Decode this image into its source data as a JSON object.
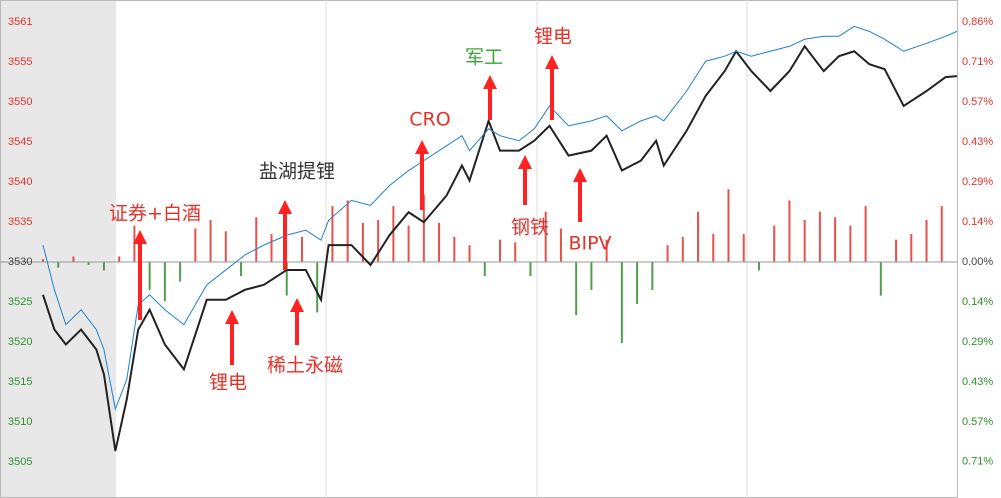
{
  "chart_data": {
    "type": "line",
    "xlim": [
      0,
      240
    ],
    "ylim": [
      3499.97,
      3563.34
    ],
    "yticks": [
      {
        "value": 3560.54,
        "label": "3561"
      },
      {
        "value": 3555.45,
        "label": "3555"
      },
      {
        "value": 3550.36,
        "label": "3550"
      },
      {
        "value": 3545.27,
        "label": "3545"
      },
      {
        "value": 3540.18,
        "label": "3540"
      },
      {
        "value": 3535.09,
        "label": "3535"
      },
      3530,
      {
        "value": 3524.91,
        "label": "3525"
      },
      {
        "value": 3519.82,
        "label": "3520"
      },
      {
        "value": 3514.73,
        "label": "3515"
      },
      {
        "value": 3509.64,
        "label": "3510"
      },
      {
        "value": 3504.55,
        "label": "3505"
      }
    ],
    "y2lim": [
      -0.8437,
      0.9367
    ],
    "y2ticks": [
      {
        "value": 0.857,
        "label": "0.86%"
      },
      {
        "value": 0.714,
        "label": "0.71%"
      },
      {
        "value": 0.572,
        "label": "0.57%"
      },
      {
        "value": 0.429,
        "label": "0.43%"
      },
      {
        "value": 0.286,
        "label": "0.29%"
      },
      {
        "value": 0.143,
        "label": "0.14%"
      },
      {
        "value": 0,
        "label": "0.00%"
      },
      {
        "value": -0.143,
        "label": "0.14%"
      },
      {
        "value": -0.286,
        "label": "0.29%"
      },
      {
        "value": -0.429,
        "label": "0.43%"
      },
      {
        "value": -0.572,
        "label": "0.57%"
      },
      {
        "value": -0.714,
        "label": "0.71%"
      }
    ],
    "up_color": "#e4322b",
    "down_color": "#2f8f2f",
    "x": [
      0,
      3,
      6,
      10,
      14,
      16,
      19,
      22,
      25,
      28,
      32,
      37,
      43,
      48,
      53,
      58,
      64,
      69,
      73,
      75,
      81,
      86,
      91,
      96,
      100,
      106,
      110,
      112,
      117,
      120,
      125,
      129,
      133,
      138,
      144,
      148,
      152,
      157,
      161,
      163,
      169,
      174,
      179,
      182,
      186,
      191,
      196,
      200,
      205,
      209,
      213,
      217,
      221,
      226,
      232,
      237,
      240
    ],
    "series": [
      {
        "color": "#222222",
        "values": [
          3525.83,
          3521.4,
          3519.5,
          3521.4,
          3518.87,
          3515.71,
          3505.96,
          3512.54,
          3521.4,
          3523.93,
          3519.5,
          3516.34,
          3525.19,
          3525.19,
          3526.46,
          3527.09,
          3528.99,
          3528.99,
          3525.19,
          3532.15,
          3532.15,
          3529.62,
          3533.42,
          3536.33,
          3535.06,
          3538.48,
          3542.27,
          3540.37,
          3547.96,
          3544.17,
          3544.17,
          3545.43,
          3547.33,
          3543.54,
          3544.17,
          3546.07,
          3541.64,
          3542.9,
          3545.43,
          3542.27,
          3546.7,
          3551.13,
          3554.29,
          3556.82,
          3554.29,
          3551.76,
          3554.29,
          3557.45,
          3554.29,
          3556.19,
          3556.82,
          3555.17,
          3554.54,
          3549.86,
          3551.76,
          3553.53,
          3553.66
        ]
      },
      {
        "color": "#1e7fd0",
        "values": [
          3532.15,
          3526.46,
          3522.03,
          3523.93,
          3521.4,
          3518.87,
          3511.28,
          3515.07,
          3524.56,
          3525.83,
          3523.93,
          3522.03,
          3527.09,
          3528.99,
          3530.89,
          3532.15,
          3533.42,
          3534.05,
          3532.78,
          3535.31,
          3537.84,
          3537.21,
          3539.74,
          3541.64,
          3542.9,
          3544.8,
          3546.07,
          3544.17,
          3546.95,
          3546.07,
          3545.43,
          3546.95,
          3549.86,
          3547.33,
          3547.96,
          3548.6,
          3546.7,
          3547.96,
          3548.6,
          3547.96,
          3551.76,
          3555.55,
          3556.19,
          3556.82,
          3556.19,
          3556.82,
          3557.45,
          3558.34,
          3558.72,
          3558.72,
          3559.98,
          3559.35,
          3558.34,
          3556.82,
          3557.83,
          3558.72,
          3559.35
        ]
      }
    ],
    "bars": {
      "x": [
        0,
        4,
        8,
        12,
        16,
        20,
        24,
        28,
        32,
        36,
        40,
        44,
        48,
        52,
        56,
        60,
        64,
        68,
        72,
        76,
        80,
        84,
        88,
        92,
        96,
        100,
        104,
        108,
        112,
        116,
        120,
        124,
        128,
        132,
        136,
        140,
        144,
        148,
        152,
        156,
        160,
        164,
        168,
        172,
        176,
        180,
        184,
        188,
        192,
        196,
        200,
        204,
        208,
        212,
        216,
        220,
        224,
        228,
        232,
        236
      ],
      "values": [
        0.01,
        -0.02,
        0.02,
        -0.01,
        -0.03,
        0.02,
        0.13,
        -0.1,
        -0.14,
        -0.07,
        0.12,
        0.15,
        0.11,
        -0.05,
        0.16,
        0.1,
        -0.12,
        0.09,
        -0.18,
        0.2,
        0.22,
        0.14,
        0.15,
        0.2,
        0.13,
        0.24,
        0.14,
        0.09,
        0.06,
        -0.05,
        0.08,
        0.07,
        -0.05,
        0.18,
        0.12,
        -0.19,
        -0.1,
        0.08,
        -0.29,
        -0.15,
        -0.1,
        0.06,
        0.09,
        0.18,
        0.1,
        0.26,
        0.1,
        -0.03,
        0.13,
        0.22,
        0.15,
        0.18,
        0.16,
        0.13,
        0.2,
        -0.12,
        0.08,
        0.1,
        0.15,
        0.2
      ]
    },
    "annotations": [
      {
        "text": "证券+白酒",
        "color": "#e4322b"
      },
      {
        "text": "盐湖提锂",
        "color": "#333333"
      },
      {
        "text": "CRO",
        "color": "#e4322b"
      },
      {
        "text": "军工",
        "color": "#3aa63a"
      },
      {
        "text": "锂电",
        "color": "#e4322b"
      },
      {
        "text": "钢铁",
        "color": "#e4322b"
      },
      {
        "text": "BIPV",
        "color": "#e4322b"
      },
      {
        "text": "锂电",
        "color": "#e4322b"
      },
      {
        "text": "稀土永磁",
        "color": "#e4322b"
      }
    ]
  }
}
